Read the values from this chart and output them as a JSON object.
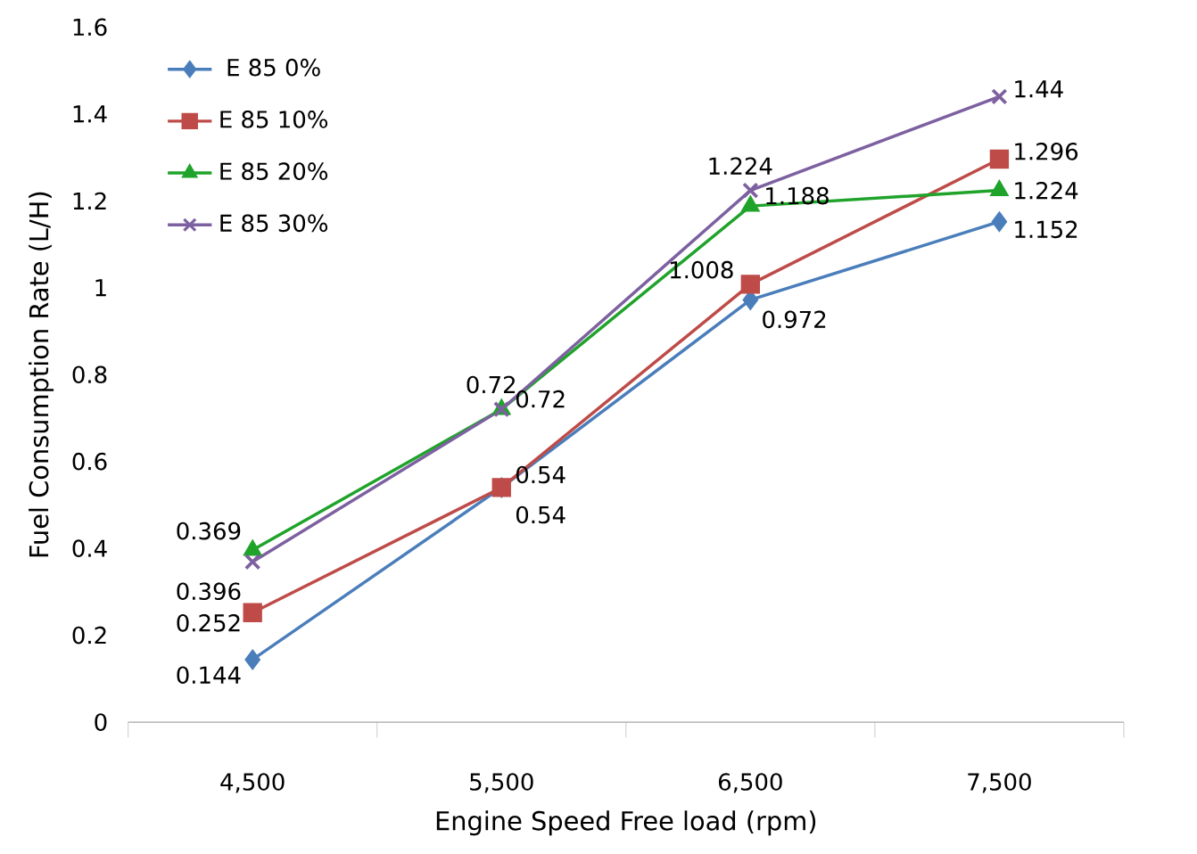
{
  "chart_data": {
    "type": "line",
    "xlabel": "Engine Speed  Free load (rpm)",
    "ylabel": "Fuel Consumption Rate (L/H)",
    "categories": [
      "4,500",
      "5,500",
      "6,500",
      "7,500"
    ],
    "ylim": [
      0,
      1.6
    ],
    "yticks": [
      0,
      0.2,
      0.4,
      0.6,
      0.8,
      1,
      1.2,
      1.4,
      1.6
    ],
    "grid": false,
    "legend": "top left",
    "data_labels": true,
    "line_style": "solid",
    "series": [
      {
        "name": "E 85 0%",
        "color": "#4a7ebb",
        "marker": "diamond",
        "values": [
          0.144,
          0.54,
          0.972,
          1.152
        ]
      },
      {
        "name": "E 85 10%",
        "color": "#be4b48",
        "marker": "square",
        "values": [
          0.252,
          0.54,
          1.008,
          1.296
        ]
      },
      {
        "name": "E 85 20%",
        "color": "#1fa32a",
        "marker": "triangle",
        "values": [
          0.396,
          0.72,
          1.188,
          1.224
        ]
      },
      {
        "name": "E 85 30%",
        "color": "#7d60a0",
        "marker": "cross",
        "values": [
          0.369,
          0.72,
          1.224,
          1.44
        ]
      }
    ]
  }
}
